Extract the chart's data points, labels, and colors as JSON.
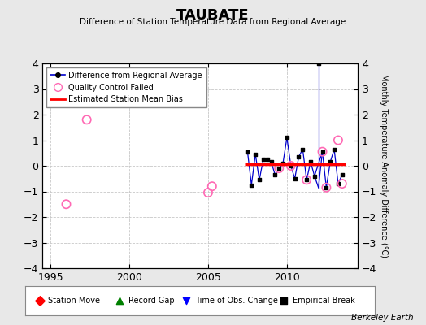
{
  "title": "TAUBATE",
  "subtitle": "Difference of Station Temperature Data from Regional Average",
  "ylabel_right": "Monthly Temperature Anomaly Difference (°C)",
  "ylim": [
    -4,
    4
  ],
  "xlim": [
    1994.5,
    2014.5
  ],
  "xticks": [
    1995,
    2000,
    2005,
    2010
  ],
  "yticks": [
    -4,
    -3,
    -2,
    -1,
    0,
    1,
    2,
    3,
    4
  ],
  "background_color": "#e8e8e8",
  "plot_bg_color": "#ffffff",
  "bias_value": 0.05,
  "bias_start": 2007.3,
  "bias_end": 2013.7,
  "spike_x": 2012.0,
  "spike_y": 4.0,
  "spike_base": -0.85,
  "main_series_x": [
    2007.5,
    2007.75,
    2008.0,
    2008.25,
    2008.5,
    2008.75,
    2009.0,
    2009.25,
    2009.5,
    2009.75,
    2010.0,
    2010.25,
    2010.5,
    2010.75,
    2011.0,
    2011.25,
    2011.5,
    2011.75,
    2012.25,
    2012.5,
    2012.75,
    2013.0,
    2013.25,
    2013.5
  ],
  "main_series_y": [
    0.55,
    -0.75,
    0.45,
    -0.55,
    0.25,
    0.25,
    0.15,
    -0.35,
    -0.1,
    0.1,
    1.1,
    0.0,
    -0.5,
    0.35,
    0.65,
    -0.55,
    0.15,
    -0.4,
    0.55,
    -0.85,
    0.15,
    0.65,
    -0.7,
    -0.35
  ],
  "qc_failed": [
    [
      1997.3,
      1.8
    ],
    [
      1996.0,
      -1.5
    ],
    [
      2005.0,
      -1.05
    ],
    [
      2005.25,
      -0.8
    ],
    [
      2009.5,
      -0.1
    ],
    [
      2010.25,
      0.0
    ],
    [
      2011.25,
      -0.55
    ],
    [
      2012.25,
      0.55
    ],
    [
      2012.5,
      -0.85
    ],
    [
      2013.25,
      1.0
    ],
    [
      2013.5,
      -0.7
    ]
  ],
  "line_color": "#0000cc",
  "dot_color": "#000000",
  "qc_color": "#ff69b4",
  "bias_color": "#ff0000",
  "footer": "Berkeley Earth",
  "grid_color": "#c8c8c8"
}
